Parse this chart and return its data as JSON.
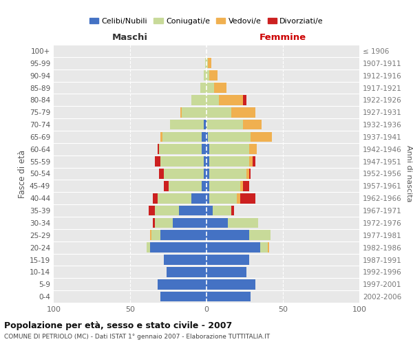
{
  "age_groups": [
    "0-4",
    "5-9",
    "10-14",
    "15-19",
    "20-24",
    "25-29",
    "30-34",
    "35-39",
    "40-44",
    "45-49",
    "50-54",
    "55-59",
    "60-64",
    "65-69",
    "70-74",
    "75-79",
    "80-84",
    "85-89",
    "90-94",
    "95-99",
    "100+"
  ],
  "birth_years": [
    "2002-2006",
    "1997-2001",
    "1992-1996",
    "1987-1991",
    "1982-1986",
    "1977-1981",
    "1972-1976",
    "1967-1971",
    "1962-1966",
    "1957-1961",
    "1952-1956",
    "1947-1951",
    "1942-1946",
    "1937-1941",
    "1932-1936",
    "1927-1931",
    "1922-1926",
    "1917-1921",
    "1912-1916",
    "1907-1911",
    "≤ 1906"
  ],
  "male_celibi": [
    30,
    32,
    26,
    28,
    37,
    30,
    22,
    18,
    10,
    3,
    2,
    2,
    3,
    3,
    2,
    0,
    0,
    0,
    0,
    0,
    0
  ],
  "male_coniugati": [
    0,
    0,
    0,
    0,
    2,
    6,
    12,
    16,
    22,
    22,
    26,
    28,
    28,
    26,
    22,
    16,
    10,
    4,
    2,
    1,
    0
  ],
  "male_vedovi": [
    0,
    0,
    0,
    0,
    0,
    1,
    0,
    0,
    0,
    0,
    0,
    0,
    0,
    1,
    0,
    1,
    0,
    0,
    0,
    0,
    0
  ],
  "male_divorziati": [
    0,
    0,
    0,
    0,
    0,
    0,
    1,
    4,
    3,
    3,
    3,
    4,
    1,
    0,
    0,
    0,
    0,
    0,
    0,
    0,
    0
  ],
  "female_nubili": [
    29,
    32,
    26,
    28,
    35,
    28,
    14,
    4,
    2,
    2,
    2,
    2,
    2,
    1,
    0,
    0,
    0,
    0,
    0,
    0,
    0
  ],
  "female_coniugate": [
    0,
    0,
    0,
    0,
    5,
    14,
    20,
    12,
    18,
    20,
    24,
    26,
    26,
    28,
    24,
    16,
    8,
    5,
    2,
    1,
    0
  ],
  "female_vedove": [
    0,
    0,
    0,
    0,
    1,
    0,
    0,
    0,
    2,
    2,
    2,
    2,
    5,
    14,
    12,
    16,
    16,
    8,
    5,
    2,
    0
  ],
  "female_divorziate": [
    0,
    0,
    0,
    0,
    0,
    0,
    0,
    2,
    10,
    4,
    1,
    2,
    0,
    0,
    0,
    0,
    2,
    0,
    0,
    0,
    0
  ],
  "color_celibi": "#4472C4",
  "color_coniugati": "#C8DA99",
  "color_vedovi": "#F0B050",
  "color_divorziati": "#CC2020",
  "xlim": 100,
  "title": "Popolazione per età, sesso e stato civile - 2007",
  "subtitle": "COMUNE DI PETRIOLO (MC) - Dati ISTAT 1° gennaio 2007 - Elaborazione TUTTITALIA.IT",
  "ylabel_left": "Fasce di età",
  "ylabel_right": "Anni di nascita",
  "label_maschi": "Maschi",
  "label_femmine": "Femmine",
  "legend_labels": [
    "Celibi/Nubili",
    "Coniugati/e",
    "Vedovi/e",
    "Divorziati/e"
  ],
  "bg_color": "#E8E8E8"
}
